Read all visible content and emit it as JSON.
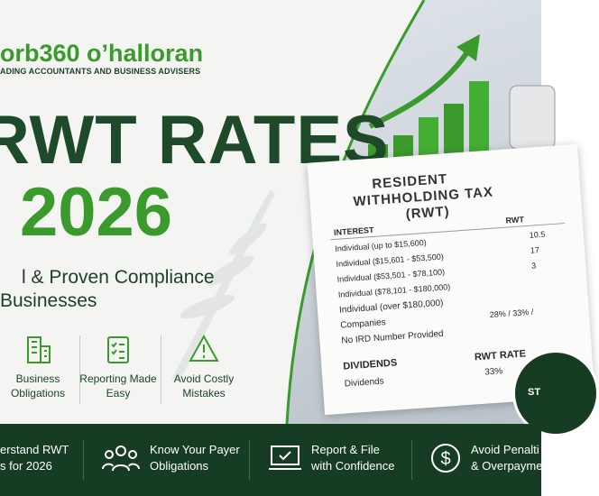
{
  "header": {
    "logo": "orb360 o’halloran",
    "tagline": "ADING ACCOUNTANTS AND BUSINESS ADVISERS",
    "title": "RWT RATES",
    "year": "2026",
    "subtitle": [
      "l & Proven Compliance",
      "Businesses"
    ]
  },
  "features": [
    "Business Obligations",
    "Reporting Made Easy",
    "Avoid Costly Mistakes"
  ],
  "document": {
    "title": [
      "RESIDENT",
      "WITHHOLDING TAX",
      "(RWT)"
    ],
    "interest_header": [
      "INTEREST",
      "RWT"
    ],
    "interest_rows": [
      [
        "Individual (up to $15,600)",
        "10.5"
      ],
      [
        "Individual ($15,601 - $53,500)",
        "17"
      ],
      [
        "Individual ($53,501 - $78,100)",
        "3"
      ],
      [
        "Individual ($78,101 - $180,000)",
        ""
      ],
      [
        "Individual (over $180,000)",
        ""
      ],
      [
        "Companies",
        "28% / 33% /"
      ],
      [
        "No IRD Number Provided",
        ""
      ]
    ],
    "dividends_header": [
      "DIVIDENDS",
      "RWT RATE"
    ],
    "dividends_rows": [
      [
        "Dividends",
        "33%"
      ]
    ]
  },
  "badge": "ST",
  "footer": [
    [
      "erstand RWT",
      "s for 2026"
    ],
    [
      "Know Your Payer",
      "Obligations"
    ],
    [
      "Report & File",
      "with Confidence"
    ],
    [
      "Avoid Penalti",
      "& Overpayme"
    ]
  ]
}
